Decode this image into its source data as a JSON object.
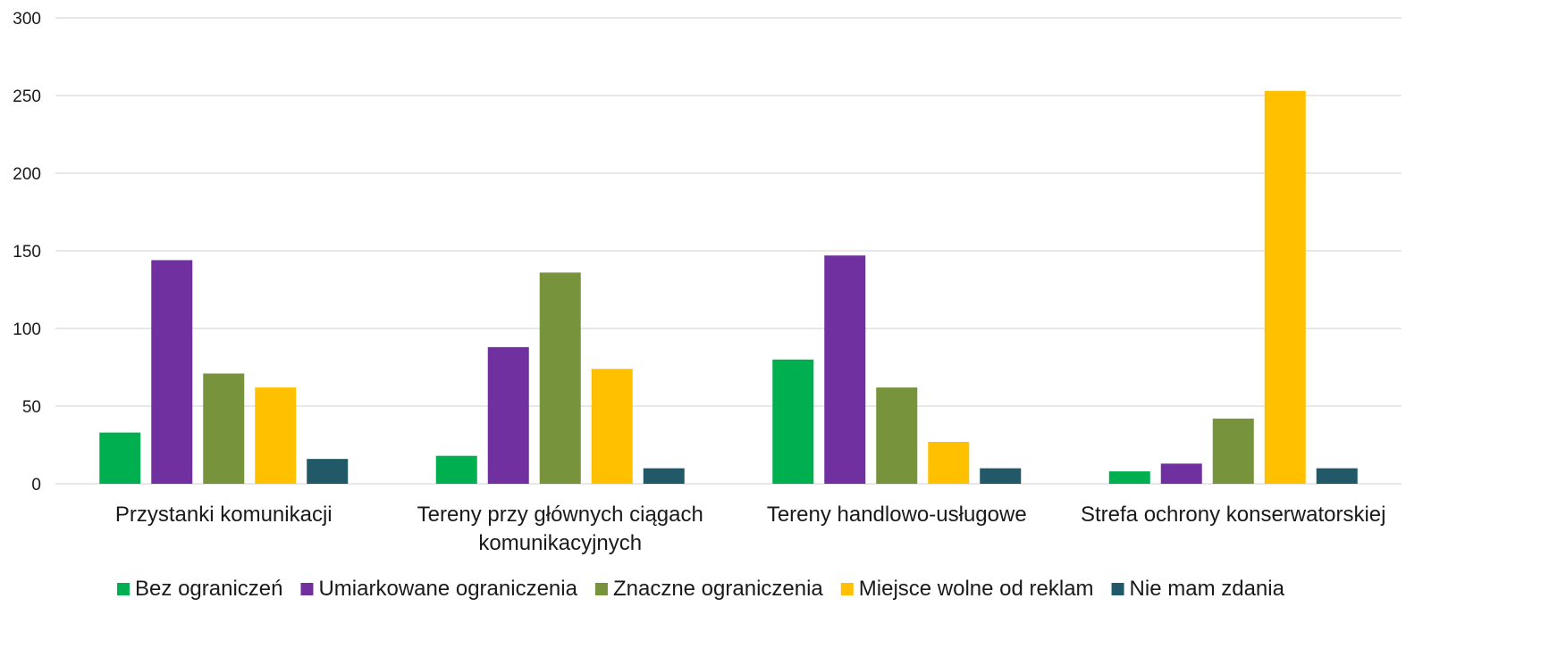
{
  "chart_data": {
    "type": "bar",
    "title": "",
    "xlabel": "",
    "ylabel": "",
    "ylim": [
      0,
      300
    ],
    "yticks": [
      0,
      50,
      100,
      150,
      200,
      250,
      300
    ],
    "grid": true,
    "legend_position": "bottom",
    "categories": [
      [
        "Przystanki komunikacji"
      ],
      [
        "Tereny przy głównych ciągach",
        "komunikacyjnych"
      ],
      [
        "Tereny handlowo-usługowe"
      ],
      [
        "Strefa ochrony konserwatorskiej"
      ]
    ],
    "series": [
      {
        "name": "Bez ograniczeń",
        "color": "#00b050",
        "values": [
          33,
          18,
          80,
          8
        ]
      },
      {
        "name": "Umiarkowane ograniczenia",
        "color": "#7030a0",
        "values": [
          144,
          88,
          147,
          13
        ]
      },
      {
        "name": "Znaczne ograniczenia",
        "color": "#77933c",
        "values": [
          71,
          136,
          62,
          42
        ]
      },
      {
        "name": "Miejsce wolne od reklam",
        "color": "#ffc000",
        "values": [
          62,
          74,
          27,
          253
        ]
      },
      {
        "name": "Nie mam zdania",
        "color": "#215968",
        "values": [
          16,
          10,
          10,
          10
        ]
      }
    ]
  }
}
